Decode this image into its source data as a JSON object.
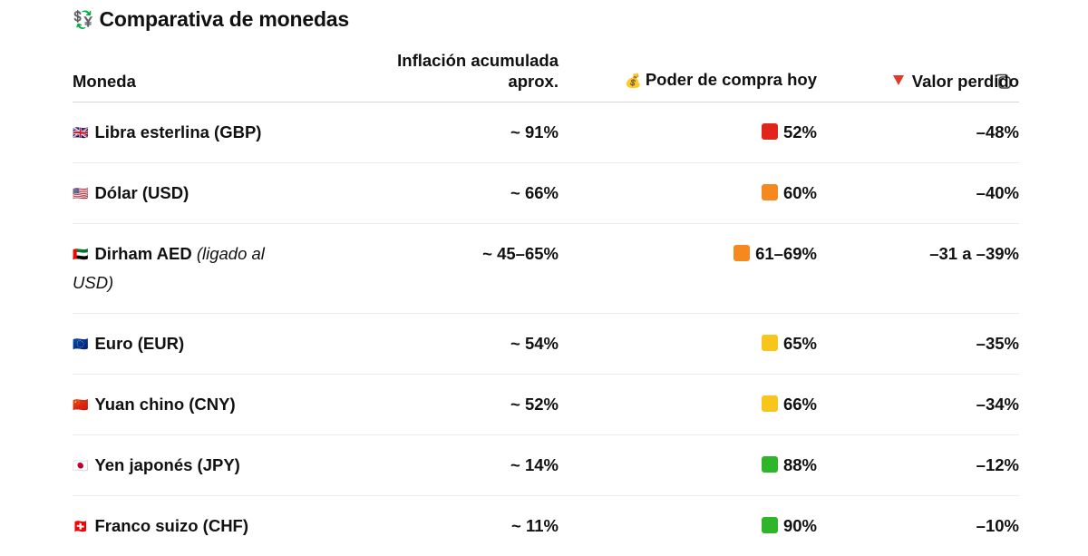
{
  "title": {
    "icon": "currency-exchange-icon",
    "icon_glyph": "💱",
    "text": "Comparativa de monedas"
  },
  "table": {
    "headers": {
      "currency": "Moneda",
      "inflation_line1": "Inflación acumulada",
      "inflation_line2": "aprox.",
      "purchasing_power_icon": "💰",
      "purchasing_power": "Poder de compra hoy",
      "value_lost": "Valor perdido"
    },
    "rows": [
      {
        "flag": "🇬🇧",
        "name": "Libra esterlina (GBP)",
        "note": "",
        "note2": "",
        "inflation": "~ 91%",
        "power": "52%",
        "power_color": "#e0261b",
        "lost": "–48%"
      },
      {
        "flag": "🇺🇸",
        "name": "Dólar (USD)",
        "note": "",
        "note2": "",
        "inflation": "~ 66%",
        "power": "60%",
        "power_color": "#f5881e",
        "lost": "–40%"
      },
      {
        "flag": "🇦🇪",
        "name": "Dirham AED",
        "note": "(ligado al",
        "note2": "USD)",
        "inflation": "~ 45–65%",
        "power": "61–69%",
        "power_color": "#f5881e",
        "lost": "–31 a –39%"
      },
      {
        "flag": "🇪🇺",
        "name": "Euro (EUR)",
        "note": "",
        "note2": "",
        "inflation": "~ 54%",
        "power": "65%",
        "power_color": "#f7c51b",
        "lost": "–35%"
      },
      {
        "flag": "🇨🇳",
        "name": "Yuan chino (CNY)",
        "note": "",
        "note2": "",
        "inflation": "~ 52%",
        "power": "66%",
        "power_color": "#f7c51b",
        "lost": "–34%"
      },
      {
        "flag": "🇯🇵",
        "name": "Yen japonés (JPY)",
        "note": "",
        "note2": "",
        "inflation": "~ 14%",
        "power": "88%",
        "power_color": "#2fb52a",
        "lost": "–12%"
      },
      {
        "flag": "🇨🇭",
        "name": "Franco suizo (CHF)",
        "note": "",
        "note2": "",
        "inflation": "~ 11%",
        "power": "90%",
        "power_color": "#2fb52a",
        "lost": "–10%"
      }
    ]
  },
  "copy_button": {
    "icon": "copy-icon"
  }
}
